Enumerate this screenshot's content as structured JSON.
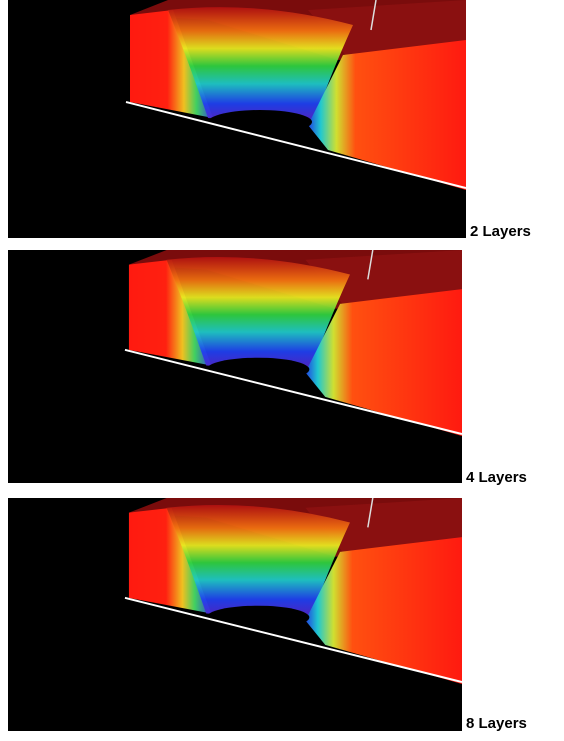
{
  "panels": [
    {
      "label": "2 Layers"
    },
    {
      "label": "4 Layers"
    },
    {
      "label": "8 Layers"
    }
  ]
}
